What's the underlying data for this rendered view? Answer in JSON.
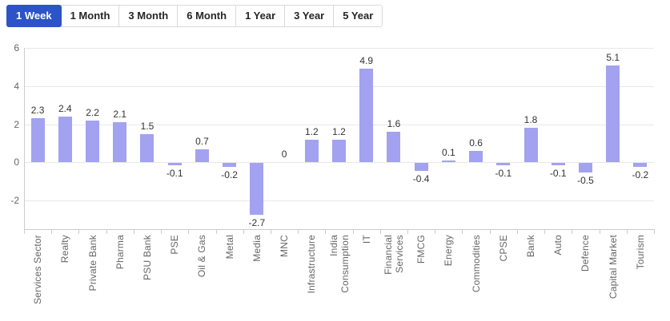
{
  "tabs": [
    {
      "label": "1 Week",
      "selected": true
    },
    {
      "label": "1 Month",
      "selected": false
    },
    {
      "label": "3 Month",
      "selected": false
    },
    {
      "label": "6 Month",
      "selected": false
    },
    {
      "label": "1 Year",
      "selected": false
    },
    {
      "label": "3 Year",
      "selected": false
    },
    {
      "label": "5 Year",
      "selected": false
    }
  ],
  "colors": {
    "bar": "#a2a2f0",
    "selected_tab_bg": "#2c54c8",
    "selected_tab_text": "#ffffff",
    "tab_text": "#262626",
    "tab_border": "#d9d9d9",
    "grid_line": "#e8e8e8",
    "axis_line": "#cccccc",
    "value_label": "#333333",
    "axis_label": "#666666"
  },
  "chart_data": {
    "type": "bar",
    "title": "",
    "xlabel": "",
    "ylabel": "",
    "categories": [
      "Services Sector",
      "Realty",
      "Private Bank",
      "Pharma",
      "PSU Bank",
      "PSE",
      "Oil & Gas",
      "Metal",
      "Media",
      "MNC",
      "Infrastructure",
      "India\nConsumption",
      "IT",
      "Financial\nServices",
      "FMCG",
      "Energy",
      "Commodities",
      "CPSE",
      "Bank",
      "Auto",
      "Defence",
      "Capital Market",
      "Tourism"
    ],
    "values": [
      2.3,
      2.4,
      2.2,
      2.1,
      1.5,
      -0.1,
      0.7,
      -0.2,
      -2.7,
      0,
      1.2,
      1.2,
      4.9,
      1.6,
      -0.4,
      0.1,
      0.6,
      -0.1,
      1.8,
      -0.1,
      -0.5,
      5.1,
      -0.2
    ],
    "value_labels": [
      "2.3",
      "2.4",
      "2.2",
      "2.1",
      "1.5",
      "-0.1",
      "0.7",
      "-0.2",
      "-2.7",
      "0",
      "1.2",
      "1.2",
      "4.9",
      "1.6",
      "-0.4",
      "0.1",
      "0.6",
      "-0.1",
      "1.8",
      "-0.1",
      "-0.5",
      "5.1",
      "-0.2"
    ],
    "yticks": [
      6,
      4,
      2,
      0,
      -2
    ],
    "ylim": [
      -3.5,
      6
    ],
    "grid": true,
    "legend": "none",
    "bar_color": "#a2a2f0"
  }
}
